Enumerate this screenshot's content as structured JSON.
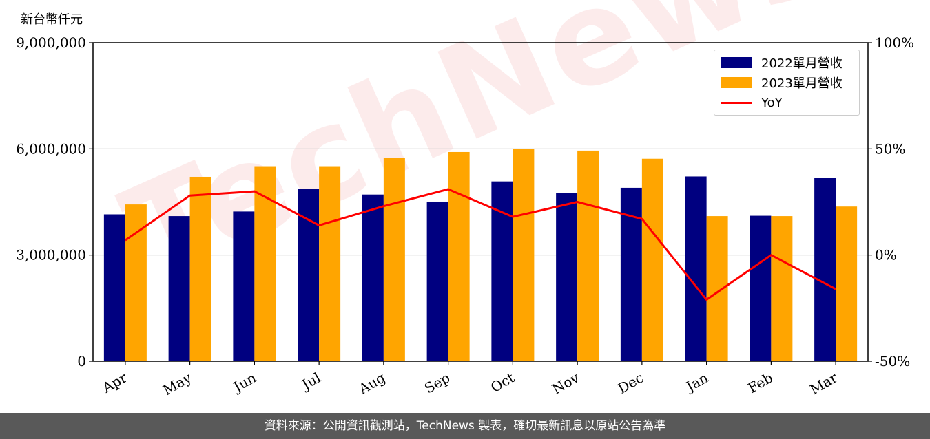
{
  "unit_label": "新台幣仟元",
  "watermark": "TechNews",
  "footer_text": "資料來源：公開資訊觀測站，TechNews 製表，確切最新訊息以原站公告為準",
  "colors": {
    "series_2022": "#000080",
    "series_2023": "#FFA500",
    "yoy": "#FF0000",
    "grid": "#cccccc"
  },
  "legend": [
    {
      "label": "2022單月營收",
      "kind": "bar",
      "color": "#000080"
    },
    {
      "label": "2023單月營收",
      "kind": "bar",
      "color": "#FFA500"
    },
    {
      "label": "YoY",
      "kind": "line",
      "color": "#FF0000"
    }
  ],
  "chart_data": {
    "type": "bar",
    "categories": [
      "Apr",
      "May",
      "Jun",
      "Jul",
      "Aug",
      "Sep",
      "Oct",
      "Nov",
      "Dec",
      "Jan",
      "Feb",
      "Mar"
    ],
    "series": [
      {
        "name": "2022單月營收",
        "axis": "left",
        "type": "bar",
        "values": [
          4150000,
          4100000,
          4230000,
          4870000,
          4710000,
          4510000,
          5080000,
          4750000,
          4900000,
          5220000,
          4110000,
          5190000
        ]
      },
      {
        "name": "2023單月營收",
        "axis": "left",
        "type": "bar",
        "values": [
          4430000,
          5210000,
          5510000,
          5510000,
          5750000,
          5910000,
          6000000,
          5950000,
          5720000,
          4100000,
          4100000,
          4370000
        ]
      },
      {
        "name": "YoY",
        "axis": "right",
        "type": "line",
        "values": [
          7,
          28,
          30,
          14,
          23,
          31,
          18,
          25,
          17,
          -21,
          0,
          -16
        ]
      }
    ],
    "ylim": [
      0,
      9000000
    ],
    "yticks": [
      0,
      3000000,
      6000000,
      9000000
    ],
    "ytick_labels": [
      "0",
      "3,000,000",
      "6,000,000",
      "9,000,000"
    ],
    "y2lim": [
      -50,
      100
    ],
    "y2ticks": [
      -50,
      0,
      50,
      100
    ],
    "y2tick_labels": [
      "-50%",
      "0%",
      "50%",
      "100%"
    ],
    "grid": true,
    "legend_position": "top-right"
  }
}
